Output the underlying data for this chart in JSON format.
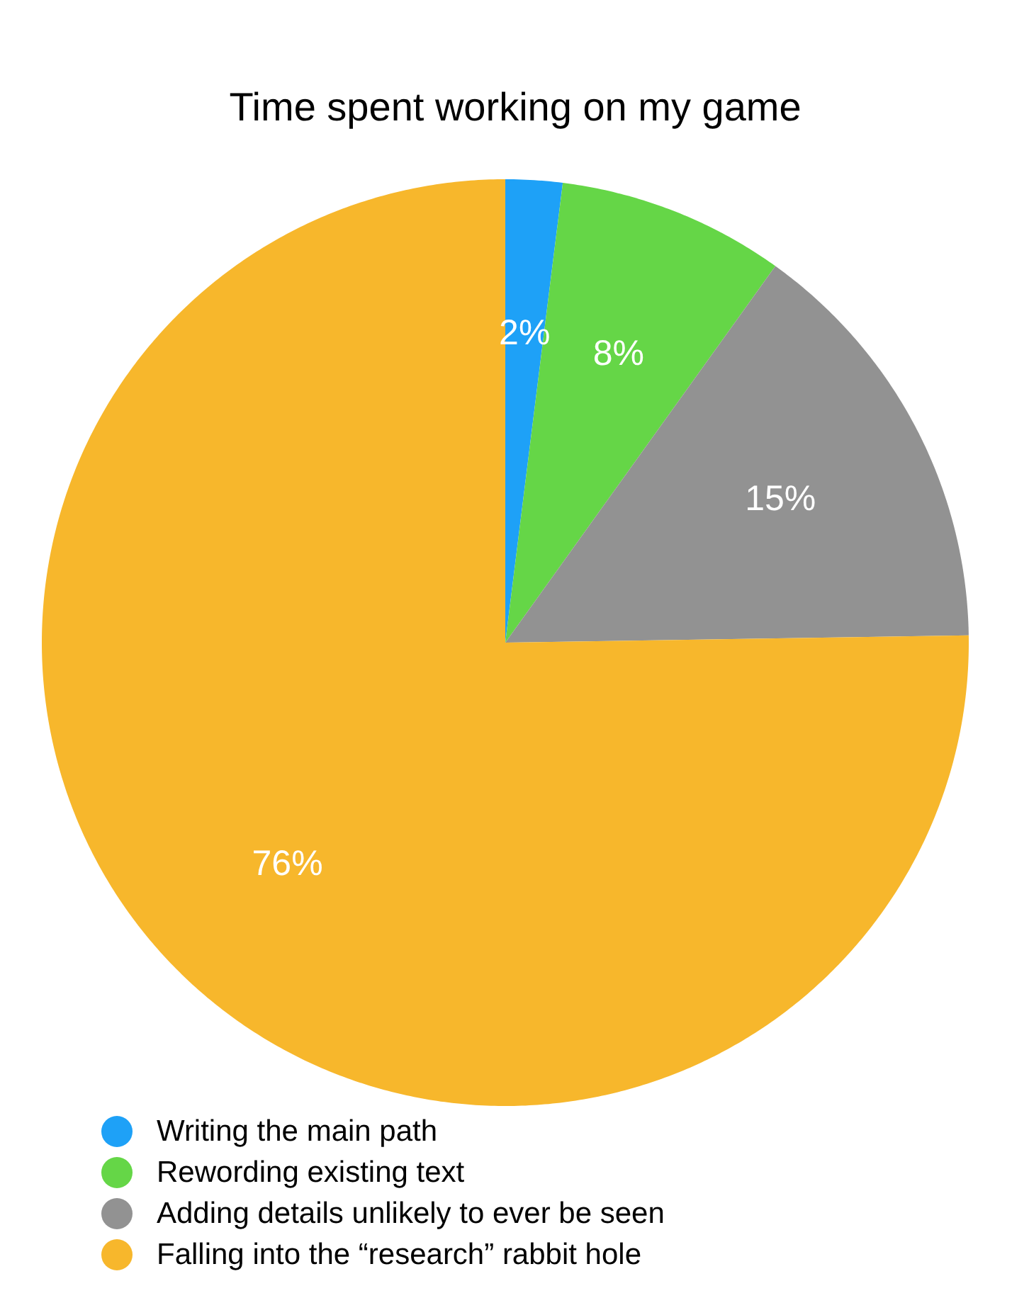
{
  "chart_data": {
    "type": "pie",
    "title": "Time spent working on my game",
    "categories": [
      "Writing the main path",
      "Rewording existing text",
      "Adding details unlikely to ever be seen",
      "Falling into the “research” rabbit hole"
    ],
    "values": [
      2,
      8,
      15,
      76
    ],
    "colors": [
      "#1ea1f7",
      "#65d647",
      "#929292",
      "#f7b72c"
    ],
    "value_labels": [
      "2%",
      "8%",
      "15%",
      "76%"
    ],
    "legend": "bottom"
  }
}
